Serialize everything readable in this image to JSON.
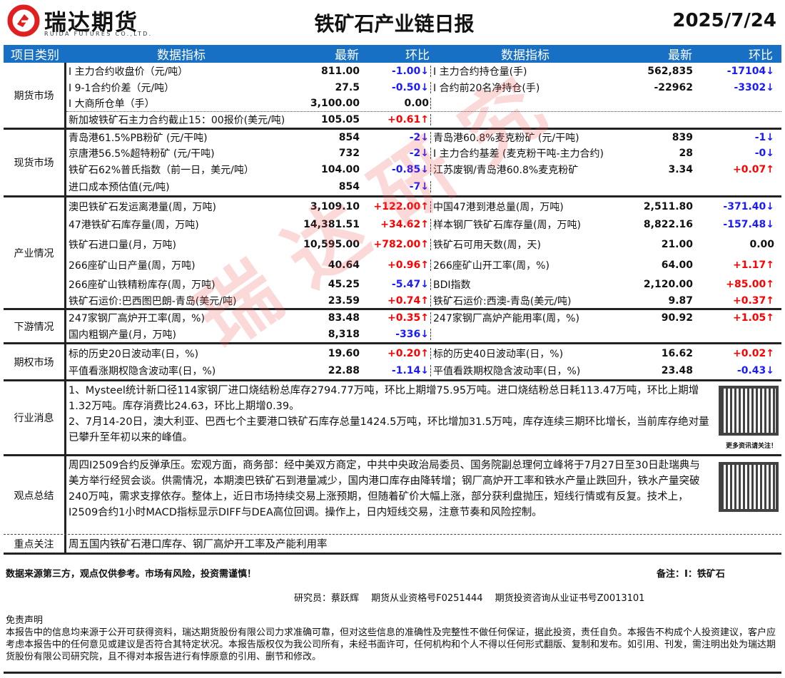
{
  "header": {
    "brand": "瑞达期货",
    "brand_en": "RUIDA FUTURES CO.,LTD.",
    "title": "铁矿石产业链日报",
    "date": "2025/7/24",
    "brand_color": "#e02020"
  },
  "table_header": {
    "category": "项目类别",
    "indicator": "数据指标",
    "latest": "最新",
    "change": "环比",
    "indicator2": "数据指标",
    "latest2": "最新",
    "change2": "环比",
    "color": "#1770c4"
  },
  "watermark": "瑞达研究",
  "sections": [
    {
      "category": "期货市场",
      "rows": [
        {
          "h": 23,
          "l": [
            "I 主力合约收盘价（元/吨）",
            "811.00",
            "-1.00↓"
          ],
          "r": [
            "I 主力合约持仓量(手)",
            "562,835",
            "-17104↓"
          ]
        },
        {
          "h": 23,
          "l": [
            "I 9-1合约价差（元/吨）",
            "27.5",
            "-0.50↓"
          ],
          "r": [
            "I 合约前20名净持仓(手)",
            "-22962",
            "-3302↓"
          ]
        },
        {
          "h": 22,
          "l": [
            "I 大商所仓单（手）",
            "3,100.00",
            "0.00"
          ],
          "r": [
            "",
            "",
            ""
          ]
        },
        {
          "h": 23,
          "dotted": true,
          "l": [
            "新加坡铁矿石主力合约截止15：00报价(美元/吨)",
            "105.05",
            "+0.61↑"
          ],
          "r": [
            "",
            "",
            ""
          ]
        }
      ]
    },
    {
      "category": "现货市场",
      "rows": [
        {
          "h": 22,
          "l": [
            "青岛港61.5%PB粉矿 (元/干吨)",
            "854",
            "-2↓"
          ],
          "r": [
            "青岛港60.8%麦克粉矿 (元/干吨)",
            "839",
            "-1↓"
          ]
        },
        {
          "h": 22,
          "l": [
            "京唐港56.5%超特粉矿 (元/干吨)",
            "732",
            "-2↓"
          ],
          "r": [
            "I 主力合约基差 (麦克粉干吨-主力合约)",
            "28",
            "-0↓"
          ]
        },
        {
          "h": 23,
          "l": [
            "铁矿石62%普氏指数（前一日，美元/吨）",
            "104.00",
            "-0.85↓"
          ],
          "r": [
            "江苏废钢/青岛港60.8%麦克粉矿",
            "3.34",
            "+0.07↑"
          ]
        },
        {
          "h": 25,
          "l": [
            "进口成本预估值(元/吨)",
            "854",
            "-7↓"
          ],
          "r": [
            "",
            "",
            ""
          ]
        }
      ]
    },
    {
      "category": "产业情况",
      "rows": [
        {
          "h": 25,
          "l": [
            "澳巴铁矿石发运离港量(周，万吨)",
            "3,109.10",
            "+122.00↑"
          ],
          "r": [
            "中国47港到港总量(周，万吨)",
            "2,511.80",
            "-371.40↓"
          ]
        },
        {
          "h": 26,
          "l": [
            "47港铁矿石库存量(周，万吨)",
            "14,381.51",
            "+34.62↑"
          ],
          "r": [
            "样本钢厂铁矿石库存量(周，万吨)",
            "8,822.16",
            "-157.48↓"
          ]
        },
        {
          "h": 30,
          "l": [
            "铁矿石进口量(月，万吨)",
            "10,595.00",
            "+782.00↑"
          ],
          "r": [
            "铁矿石可用天数(周，天)",
            "21.00",
            "0.00"
          ]
        },
        {
          "h": 28,
          "l": [
            "266座矿山日产量(周，万吨)",
            "40.64",
            "+0.96↑"
          ],
          "r": [
            "266座矿山开工率(周，%)",
            "64.00",
            "+1.17↑"
          ]
        },
        {
          "h": 25,
          "l": [
            "266座矿山铁精粉库存(周，万吨)",
            "45.25",
            "-5.47↓"
          ],
          "r": [
            "BDI指数",
            "2,120.00",
            "+85.00↑"
          ]
        },
        {
          "h": 21,
          "l": [
            "铁矿石运价:巴西图巴朗-青岛(美元/吨)",
            "23.59",
            "+0.74↑"
          ],
          "r": [
            "铁矿石运价:西澳-青岛(美元/吨)",
            "9.87",
            "+0.37↑"
          ]
        }
      ]
    },
    {
      "category": "下游情况",
      "rows": [
        {
          "h": 22,
          "l": [
            "247家钢厂高炉开工率(周，%)",
            "83.48",
            "+0.35↑"
          ],
          "r": [
            "247家钢厂高炉产能用率(周，%)",
            "90.92",
            "+1.05↑"
          ]
        },
        {
          "h": 23,
          "l": [
            "国内粗钢产量(月，万吨)",
            "8,318",
            "-336↓"
          ],
          "r": [
            "",
            "",
            ""
          ]
        }
      ]
    },
    {
      "category": "期权市场",
      "rows": [
        {
          "h": 25,
          "l": [
            "标的历史20日波动率(日，%)",
            "19.60",
            "+0.20↑"
          ],
          "r": [
            "标的历史40日波动率(日，%)",
            "16.62",
            "+0.02↑"
          ]
        },
        {
          "h": 24,
          "l": [
            "平值看涨期权隐含波动率(日，%)",
            "22.88",
            "-1.14↓"
          ],
          "r": [
            "平值看跌期权隐含波动率(日，%)",
            "23.48",
            "-0.43↓"
          ]
        }
      ]
    }
  ],
  "news": {
    "category": "行业消息",
    "text": [
      "1、Mysteel统计新口径114家钢厂进口烧结粉总库存2794.77万吨，环比上期增75.95万吨。进口烧结粉总日耗113.47万吨，环比上期增1.32万吨。库存消费比24.63，环比上期增0.39。",
      "2、7月14-20日，澳大利亚、巴西七个主要港口铁矿石库存总量1424.5万吨，环比增加31.5万吨，库存连续三期环比增长，当前库存绝对量已攀升至年初以来的峰值。"
    ],
    "qr_caption": "更多资讯请关注！"
  },
  "view": {
    "category": "观点总结",
    "text": "周四I2509合约反弹承压。宏观方面，商务部：经中美双方商定，中共中央政治局委员、国务院副总理何立峰将于7月27日至30日赴瑞典与美方举行经贸会谈。供需情况，本期澳巴铁矿石到港量减少，国内港口库存由降转增；钢厂高炉开工率和铁水产量止跌回升，铁水产量突破240万吨，需求支撑依存。整体上，近日市场持续交易上涨预期，但随着矿价大幅上涨，部分获利盘抛压，短线行情或有反复。技术上，I2509合约1小时MACD指标显示DIFF与DEA高位回调。操作上，日内短线交易，注意节奏和风险控制。"
  },
  "focus": {
    "category": "重点关注",
    "text": "周五国内铁矿石港口库存、钢厂高炉开工率及产能利用率"
  },
  "footer": {
    "source": "数据来源第三方，观点仅供参考。市场有风险，投资需谨慎！",
    "note": "备注：I：铁矿石",
    "researcher": "研究员：蔡跃辉　 期货从业资格号F0251444　 期货投资咨询从业证书号Z0013101",
    "disclaimer_title": "免责声明",
    "disclaimer": "本报告中的信息均来源于公开可获得资料，瑞达期货股份有限公司力求准确可靠，但对这些信息的准确性及完整性不做任何保证，据此投资，责任自负。本报告不构成个人投资建议，客户应考虑本报告中的任何意见或建议是否符合其特定状况。本报告版权仅为我公司所有，未经书面许可，任何机构和个人不得以任何形式翻版、复制和发布。如引用、刊发，需注明出处为瑞达期货股份有限公司研究院，且不得对本报告进行有悖原意的引用、删节和修改。"
  }
}
